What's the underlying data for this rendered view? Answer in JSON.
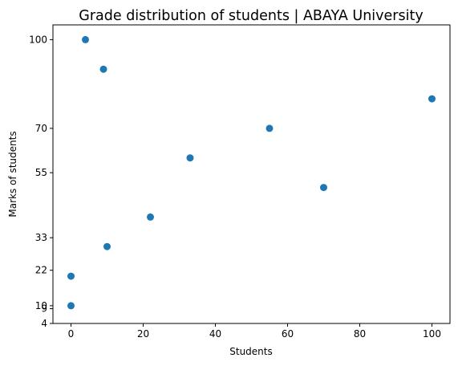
{
  "chart_data": {
    "type": "scatter",
    "title": "Grade distribution of students | ABAYA University",
    "xlabel": "Students",
    "ylabel": "Marks of students",
    "xlim": [
      -5,
      105
    ],
    "ylim": [
      4,
      105
    ],
    "x_ticks": [
      0,
      20,
      40,
      60,
      80,
      100
    ],
    "y_ticks": [
      4,
      9,
      10,
      22,
      33,
      55,
      70,
      100
    ],
    "grid": false,
    "marker_color": "#1f77b4",
    "series": [
      {
        "x": [
          4,
          9,
          100,
          55,
          33,
          70,
          22,
          10,
          0,
          0
        ],
        "y": [
          100,
          90,
          80,
          70,
          60,
          50,
          40,
          30,
          20,
          10
        ]
      }
    ]
  }
}
